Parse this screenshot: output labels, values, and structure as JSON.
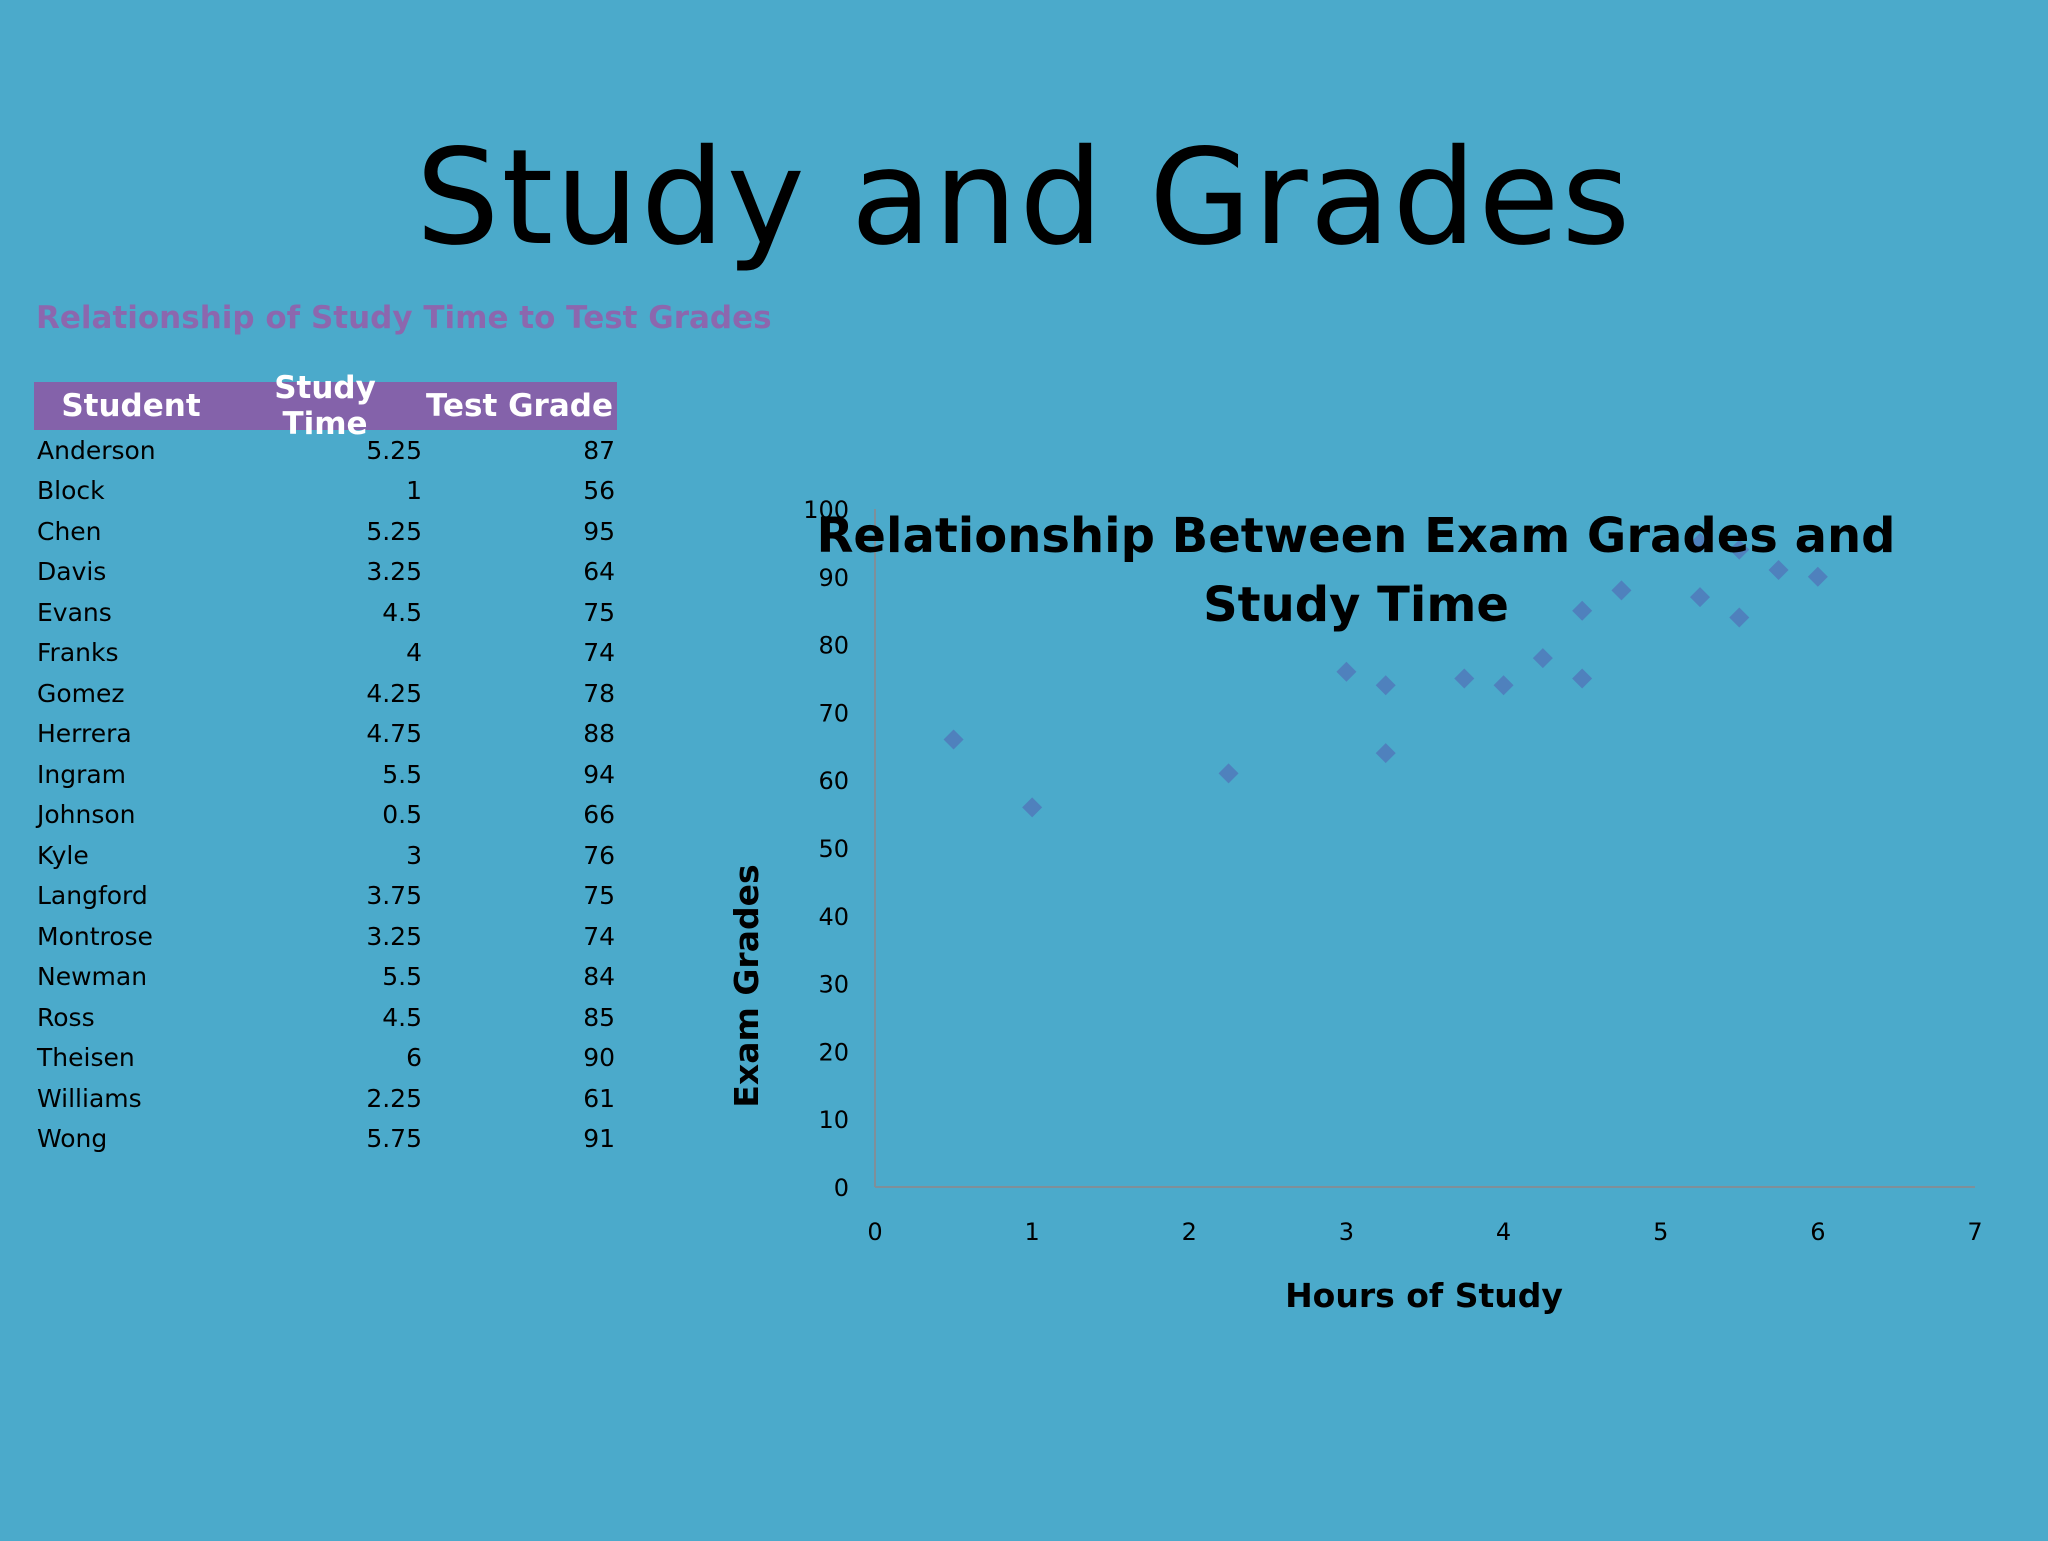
{
  "slide": {
    "title": "Study and Grades"
  },
  "table": {
    "caption": "Relationship of Study Time to Test Grades",
    "headers": [
      "Student",
      "Study Time",
      "Test Grade"
    ],
    "header_color": "#8462AA",
    "rows": [
      {
        "student": "Anderson",
        "study_time": "5.25",
        "test_grade": "87"
      },
      {
        "student": "Block",
        "study_time": "1",
        "test_grade": "56"
      },
      {
        "student": "Chen",
        "study_time": "5.25",
        "test_grade": "95"
      },
      {
        "student": "Davis",
        "study_time": "3.25",
        "test_grade": "64"
      },
      {
        "student": "Evans",
        "study_time": "4.5",
        "test_grade": "75"
      },
      {
        "student": "Franks",
        "study_time": "4",
        "test_grade": "74"
      },
      {
        "student": "Gomez",
        "study_time": "4.25",
        "test_grade": "78"
      },
      {
        "student": "Herrera",
        "study_time": "4.75",
        "test_grade": "88"
      },
      {
        "student": "Ingram",
        "study_time": "5.5",
        "test_grade": "94"
      },
      {
        "student": "Johnson",
        "study_time": "0.5",
        "test_grade": "66"
      },
      {
        "student": "Kyle",
        "study_time": "3",
        "test_grade": "76"
      },
      {
        "student": "Langford",
        "study_time": "3.75",
        "test_grade": "75"
      },
      {
        "student": "Montrose",
        "study_time": "3.25",
        "test_grade": "74"
      },
      {
        "student": "Newman",
        "study_time": "5.5",
        "test_grade": "84"
      },
      {
        "student": "Ross",
        "study_time": "4.5",
        "test_grade": "85"
      },
      {
        "student": "Theisen",
        "study_time": "6",
        "test_grade": "90"
      },
      {
        "student": "Williams",
        "study_time": "2.25",
        "test_grade": "61"
      },
      {
        "student": "Wong",
        "study_time": "5.75",
        "test_grade": "91"
      }
    ]
  },
  "chart_data": {
    "type": "scatter",
    "title_lines": [
      "Relationship Between Exam Grades and",
      "Study Time"
    ],
    "xlabel": "Hours of Study",
    "ylabel": "Exam Grades",
    "xlim": [
      0,
      7
    ],
    "ylim": [
      0,
      100
    ],
    "x_ticks": [
      0,
      1,
      2,
      3,
      4,
      5,
      6,
      7
    ],
    "y_ticks": [
      0,
      10,
      20,
      30,
      40,
      50,
      60,
      70,
      80,
      90,
      100
    ],
    "grid": false,
    "marker": "diamond",
    "marker_color": "#4F81BD",
    "x": [
      5.25,
      1,
      5.25,
      3.25,
      4.5,
      4,
      4.25,
      4.75,
      5.5,
      0.5,
      3,
      3.75,
      3.25,
      5.5,
      4.5,
      6,
      2.25,
      5.75
    ],
    "y": [
      87,
      56,
      95,
      64,
      75,
      74,
      78,
      88,
      94,
      66,
      76,
      75,
      74,
      84,
      85,
      90,
      61,
      91
    ]
  }
}
